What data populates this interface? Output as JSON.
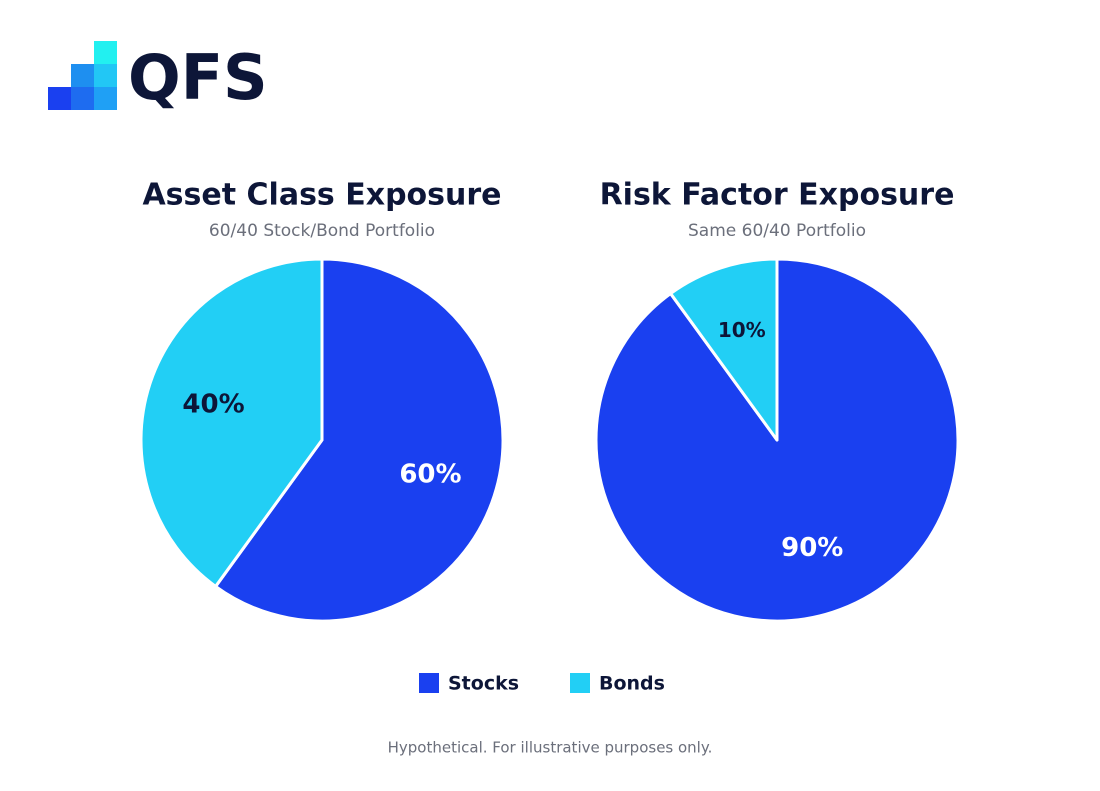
{
  "logo": "QFS",
  "chart_data": [
    {
      "type": "pie",
      "title": "Asset Class Exposure",
      "subtitle": "60/40 Stock/Bond Portfolio",
      "categories": [
        "Stocks",
        "Bonds"
      ],
      "values": [
        60,
        40
      ],
      "value_labels": [
        "60%",
        "40%"
      ],
      "colors": [
        "#1a40f0",
        "#22cff5"
      ]
    },
    {
      "type": "pie",
      "title": "Risk Factor Exposure",
      "subtitle": "Same 60/40 Portfolio",
      "categories": [
        "Stocks",
        "Bonds"
      ],
      "values": [
        90,
        10
      ],
      "value_labels": [
        "90%",
        "10%"
      ],
      "colors": [
        "#1a40f0",
        "#22cff5"
      ]
    }
  ],
  "footnote": "Hypothetical. For illustrative purposes only."
}
